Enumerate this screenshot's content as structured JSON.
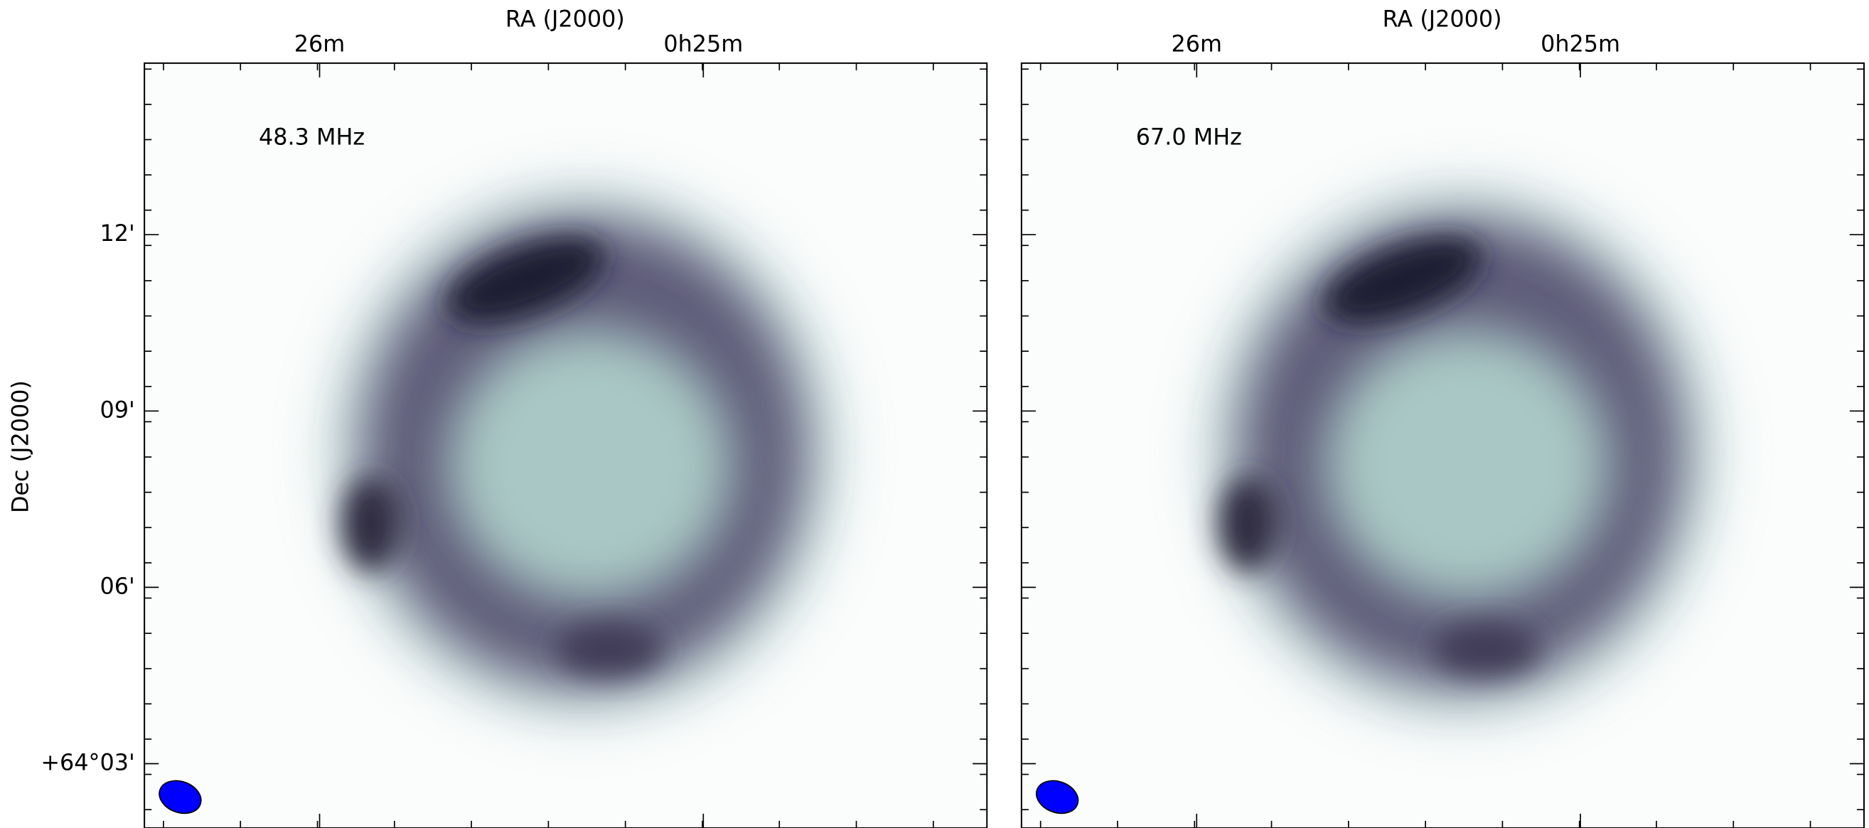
{
  "figure": {
    "ylabel": "Dec (J2000)",
    "yticks": [
      "12'",
      "09'",
      "06'",
      "+64°03'"
    ],
    "panels": [
      {
        "xlabel": "RA (J2000)",
        "xticks": [
          "26m",
          "0h25m"
        ],
        "annotation": "48.3 MHz"
      },
      {
        "xlabel": "RA (J2000)",
        "xticks": [
          "26m",
          "0h25m"
        ],
        "annotation": "67.0 MHz"
      }
    ]
  }
}
